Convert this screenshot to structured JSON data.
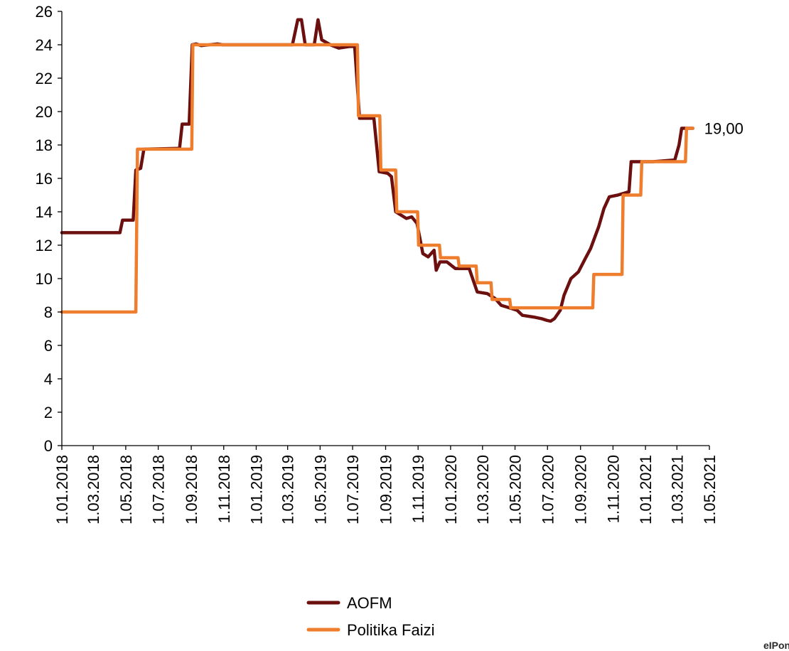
{
  "chart_data": {
    "type": "line",
    "title": "",
    "xlabel": "",
    "ylabel": "",
    "ylim": [
      0,
      26
    ],
    "yticks": [
      "0",
      "2",
      "4",
      "6",
      "8",
      "10",
      "12",
      "14",
      "16",
      "18",
      "20",
      "22",
      "24",
      "26"
    ],
    "xlim": [
      "2018-01-01",
      "2021-05-01"
    ],
    "xticks": [
      {
        "date": "2018-01-01",
        "label": "1.01.2018"
      },
      {
        "date": "2018-03-01",
        "label": "1.03.2018"
      },
      {
        "date": "2018-05-01",
        "label": "1.05.2018"
      },
      {
        "date": "2018-07-01",
        "label": "1.07.2018"
      },
      {
        "date": "2018-09-01",
        "label": "1.09.2018"
      },
      {
        "date": "2018-11-01",
        "label": "1.11.2018"
      },
      {
        "date": "2019-01-01",
        "label": "1.01.2019"
      },
      {
        "date": "2019-03-01",
        "label": "1.03.2019"
      },
      {
        "date": "2019-05-01",
        "label": "1.05.2019"
      },
      {
        "date": "2019-07-01",
        "label": "1.07.2019"
      },
      {
        "date": "2019-09-01",
        "label": "1.09.2019"
      },
      {
        "date": "2019-11-01",
        "label": "1.11.2019"
      },
      {
        "date": "2020-01-01",
        "label": "1.01.2020"
      },
      {
        "date": "2020-03-01",
        "label": "1.03.2020"
      },
      {
        "date": "2020-05-01",
        "label": "1.05.2020"
      },
      {
        "date": "2020-07-01",
        "label": "1.07.2020"
      },
      {
        "date": "2020-09-01",
        "label": "1.09.2020"
      },
      {
        "date": "2020-11-01",
        "label": "1.11.2020"
      },
      {
        "date": "2021-01-01",
        "label": "1.01.2021"
      },
      {
        "date": "2021-03-01",
        "label": "1.03.2021"
      },
      {
        "date": "2021-05-01",
        "label": "1.05.2021"
      }
    ],
    "grid": false,
    "legend_position": "bottom-center",
    "end_label": "19,00",
    "series": [
      {
        "name": "AOFM",
        "color": "#6b0f0f",
        "points": [
          [
            "2018-01-01",
            12.75
          ],
          [
            "2018-04-20",
            12.75
          ],
          [
            "2018-04-25",
            13.5
          ],
          [
            "2018-05-15",
            13.5
          ],
          [
            "2018-05-20",
            16.5
          ],
          [
            "2018-05-29",
            16.6
          ],
          [
            "2018-06-04",
            17.75
          ],
          [
            "2018-08-10",
            17.8
          ],
          [
            "2018-08-15",
            19.25
          ],
          [
            "2018-08-28",
            19.25
          ],
          [
            "2018-09-03",
            24.0
          ],
          [
            "2018-09-10",
            24.05
          ],
          [
            "2018-09-20",
            23.95
          ],
          [
            "2018-10-20",
            24.05
          ],
          [
            "2018-10-30",
            24.0
          ],
          [
            "2019-03-10",
            24.0
          ],
          [
            "2019-03-20",
            25.5
          ],
          [
            "2019-03-27",
            25.5
          ],
          [
            "2019-04-03",
            24.0
          ],
          [
            "2019-04-20",
            24.0
          ],
          [
            "2019-04-27",
            25.5
          ],
          [
            "2019-05-04",
            24.3
          ],
          [
            "2019-05-20",
            24.0
          ],
          [
            "2019-06-05",
            23.8
          ],
          [
            "2019-06-25",
            23.9
          ],
          [
            "2019-07-05",
            23.9
          ],
          [
            "2019-07-14",
            19.6
          ],
          [
            "2019-07-20",
            19.6
          ],
          [
            "2019-08-10",
            19.6
          ],
          [
            "2019-08-20",
            16.4
          ],
          [
            "2019-09-05",
            16.3
          ],
          [
            "2019-09-12",
            16.1
          ],
          [
            "2019-09-20",
            14.0
          ],
          [
            "2019-10-10",
            13.6
          ],
          [
            "2019-10-20",
            13.7
          ],
          [
            "2019-10-30",
            13.3
          ],
          [
            "2019-11-10",
            11.5
          ],
          [
            "2019-11-20",
            11.3
          ],
          [
            "2019-12-01",
            11.7
          ],
          [
            "2019-12-05",
            10.5
          ],
          [
            "2019-12-12",
            11.0
          ],
          [
            "2019-12-25",
            11.0
          ],
          [
            "2020-01-10",
            10.6
          ],
          [
            "2020-01-20",
            10.6
          ],
          [
            "2020-02-05",
            10.6
          ],
          [
            "2020-02-20",
            9.2
          ],
          [
            "2020-03-10",
            9.1
          ],
          [
            "2020-03-25",
            8.8
          ],
          [
            "2020-04-05",
            8.4
          ],
          [
            "2020-04-15",
            8.3
          ],
          [
            "2020-05-05",
            8.1
          ],
          [
            "2020-05-15",
            7.8
          ],
          [
            "2020-06-05",
            7.7
          ],
          [
            "2020-06-20",
            7.6
          ],
          [
            "2020-06-30",
            7.5
          ],
          [
            "2020-07-07",
            7.45
          ],
          [
            "2020-07-14",
            7.6
          ],
          [
            "2020-07-25",
            8.1
          ],
          [
            "2020-08-01",
            9.0
          ],
          [
            "2020-08-14",
            10.0
          ],
          [
            "2020-08-28",
            10.4
          ],
          [
            "2020-09-10",
            11.2
          ],
          [
            "2020-09-20",
            11.8
          ],
          [
            "2020-10-05",
            13.1
          ],
          [
            "2020-10-15",
            14.2
          ],
          [
            "2020-10-25",
            14.9
          ],
          [
            "2020-11-10",
            15.0
          ],
          [
            "2020-12-01",
            15.2
          ],
          [
            "2020-12-05",
            17.0
          ],
          [
            "2021-01-15",
            17.0
          ],
          [
            "2021-02-25",
            17.1
          ],
          [
            "2021-03-05",
            18.0
          ],
          [
            "2021-03-10",
            19.0
          ],
          [
            "2021-03-31",
            19.0
          ]
        ]
      },
      {
        "name": "Politika Faizi",
        "color": "#ef7d2e",
        "points": [
          [
            "2018-01-01",
            8.0
          ],
          [
            "2018-05-20",
            8.0
          ],
          [
            "2018-05-23",
            17.75
          ],
          [
            "2018-09-02",
            17.75
          ],
          [
            "2018-09-04",
            24.0
          ],
          [
            "2019-07-10",
            24.0
          ],
          [
            "2019-07-12",
            19.75
          ],
          [
            "2019-08-21",
            19.75
          ],
          [
            "2019-08-23",
            16.5
          ],
          [
            "2019-09-20",
            16.5
          ],
          [
            "2019-09-22",
            14.0
          ],
          [
            "2019-10-31",
            14.0
          ],
          [
            "2019-11-02",
            12.0
          ],
          [
            "2019-12-11",
            12.0
          ],
          [
            "2019-12-13",
            11.25
          ],
          [
            "2020-01-15",
            11.25
          ],
          [
            "2020-01-17",
            10.75
          ],
          [
            "2020-02-18",
            10.75
          ],
          [
            "2020-02-20",
            9.75
          ],
          [
            "2020-03-17",
            9.75
          ],
          [
            "2020-03-19",
            8.75
          ],
          [
            "2020-04-21",
            8.75
          ],
          [
            "2020-04-23",
            8.25
          ],
          [
            "2020-09-24",
            8.25
          ],
          [
            "2020-09-26",
            10.25
          ],
          [
            "2020-11-18",
            10.25
          ],
          [
            "2020-11-20",
            15.0
          ],
          [
            "2020-12-23",
            15.0
          ],
          [
            "2020-12-25",
            17.0
          ],
          [
            "2021-03-17",
            17.0
          ],
          [
            "2021-03-19",
            19.0
          ],
          [
            "2021-03-31",
            19.0
          ]
        ]
      }
    ]
  },
  "watermark": "eIPonl"
}
